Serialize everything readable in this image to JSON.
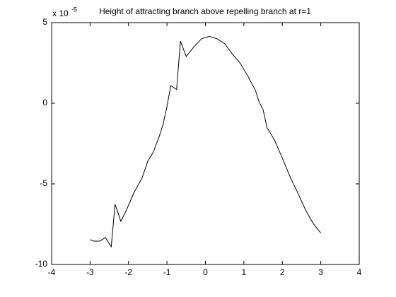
{
  "chart_data": {
    "type": "line",
    "title": "Height of attracting branch above repelling branch at r=1",
    "y_multiplier": {
      "base": "x 10",
      "exponent": "-5"
    },
    "x": [
      -3,
      -2.9,
      -2.75,
      -2.6,
      -2.45,
      -2.35,
      -2.2,
      -2.05,
      -1.85,
      -1.65,
      -1.5,
      -1.35,
      -1.2,
      -1.1,
      -1.0,
      -0.9,
      -0.75,
      -0.65,
      -0.5,
      -0.3,
      -0.1,
      0.1,
      0.3,
      0.5,
      0.7,
      0.9,
      1.1,
      1.3,
      1.4,
      1.5,
      1.6,
      1.8,
      2.0,
      2.2,
      2.4,
      2.6,
      2.8,
      3.0
    ],
    "series": [
      {
        "color": "#000000",
        "values": [
          -8.46,
          -8.55,
          -8.55,
          -8.33,
          -8.9,
          -6.27,
          -7.32,
          -6.6,
          -5.5,
          -4.65,
          -3.6,
          -3.0,
          -2.05,
          -1.3,
          -0.2,
          1.1,
          0.85,
          3.85,
          2.9,
          3.5,
          4.0,
          4.15,
          4.0,
          3.7,
          3.05,
          2.5,
          1.7,
          0.8,
          0.05,
          -0.4,
          -1.5,
          -2.3,
          -3.4,
          -4.55,
          -5.55,
          -6.6,
          -7.45,
          -8.05
        ]
      }
    ],
    "xlim": [
      -4,
      4
    ],
    "xticks": [
      -4,
      -3,
      -2,
      -1,
      0,
      1,
      2,
      3,
      4
    ],
    "ylim": [
      -10,
      5
    ],
    "yticks": [
      -10,
      -5,
      0,
      5
    ]
  }
}
